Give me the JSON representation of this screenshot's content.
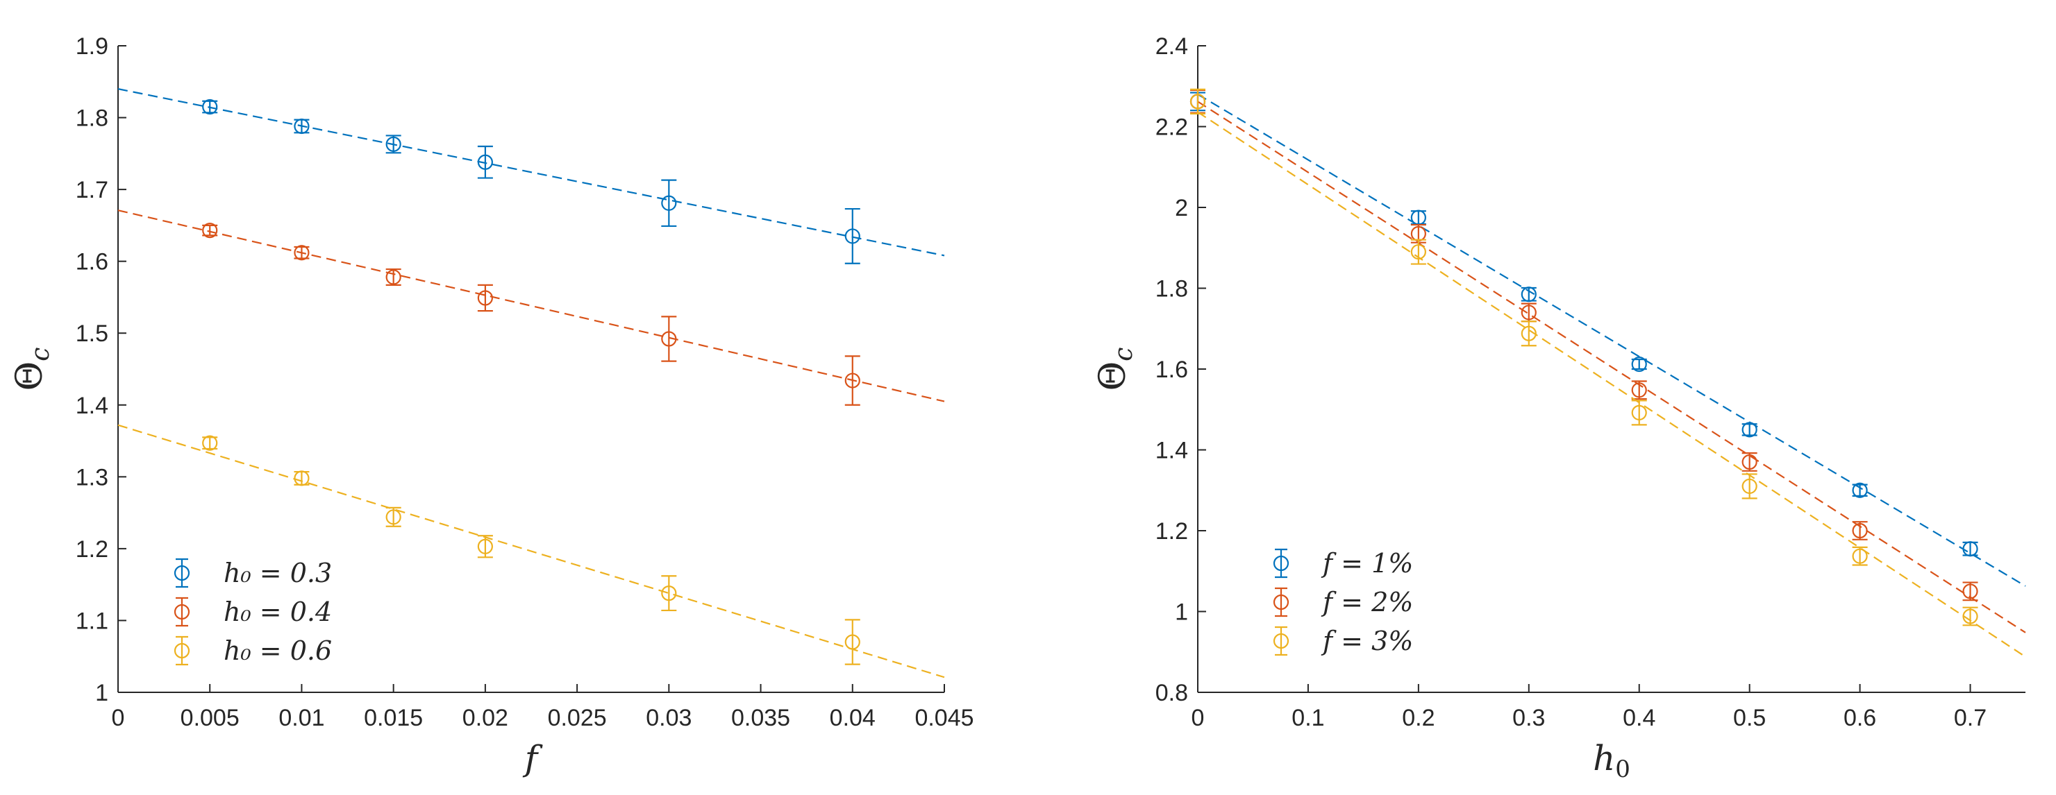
{
  "chart_data": [
    {
      "type": "scatter",
      "title": "",
      "xlabel": "f",
      "ylabel": "Θ_c",
      "xlim": [
        0,
        0.045
      ],
      "ylim": [
        1,
        1.9
      ],
      "xticks": [
        "0",
        "0.005",
        "0.01",
        "0.015",
        "0.02",
        "0.025",
        "0.03",
        "0.035",
        "0.04",
        "0.045"
      ],
      "yticks": [
        "1",
        "1.1",
        "1.2",
        "1.3",
        "1.4",
        "1.5",
        "1.6",
        "1.7",
        "1.8",
        "1.9"
      ],
      "legend_position": "bottom-left",
      "series": [
        {
          "name": "h_0 = 0.3",
          "legend_label": "h₀ = 0.3",
          "color": "#0072BD",
          "x": [
            0.005,
            0.01,
            0.015,
            0.02,
            0.03,
            0.04
          ],
          "y": [
            1.815,
            1.788,
            1.763,
            1.738,
            1.681,
            1.635
          ],
          "err": [
            0.008,
            0.009,
            0.012,
            0.022,
            0.032,
            0.038
          ],
          "fit": [
            [
              0,
              1.84
            ],
            [
              0.045,
              1.608
            ]
          ]
        },
        {
          "name": "h_0 = 0.4",
          "legend_label": "h₀ = 0.4",
          "color": "#D95319",
          "x": [
            0.005,
            0.01,
            0.015,
            0.02,
            0.03,
            0.04
          ],
          "y": [
            1.643,
            1.612,
            1.578,
            1.549,
            1.492,
            1.434
          ],
          "err": [
            0.007,
            0.008,
            0.011,
            0.018,
            0.031,
            0.034
          ],
          "fit": [
            [
              0,
              1.671
            ],
            [
              0.045,
              1.405
            ]
          ]
        },
        {
          "name": "h_0 = 0.6",
          "legend_label": "h₀ = 0.6",
          "color": "#EDB120",
          "x": [
            0.005,
            0.01,
            0.015,
            0.02,
            0.03,
            0.04
          ],
          "y": [
            1.347,
            1.298,
            1.244,
            1.203,
            1.138,
            1.07
          ],
          "err": [
            0.008,
            0.009,
            0.013,
            0.015,
            0.024,
            0.031
          ],
          "fit": [
            [
              0,
              1.372
            ],
            [
              0.045,
              1.021
            ]
          ]
        }
      ]
    },
    {
      "type": "scatter",
      "title": "",
      "xlabel": "h_0",
      "ylabel": "Θ_c",
      "xlim": [
        0,
        0.75
      ],
      "ylim": [
        0.8,
        2.4
      ],
      "xticks": [
        "0",
        "0.1",
        "0.2",
        "0.3",
        "0.4",
        "0.5",
        "0.6",
        "0.7"
      ],
      "yticks": [
        "0.8",
        "1",
        "1.2",
        "1.4",
        "1.6",
        "1.8",
        "2",
        "2.2",
        "2.4"
      ],
      "legend_position": "bottom-left",
      "series": [
        {
          "name": "f = 1%",
          "legend_label": "f = 1%",
          "color": "#0072BD",
          "x": [
            0,
            0.2,
            0.3,
            0.4,
            0.5,
            0.6,
            0.7
          ],
          "y": [
            2.262,
            1.975,
            1.785,
            1.612,
            1.45,
            1.3,
            1.155
          ],
          "err": [
            0.022,
            0.016,
            0.016,
            0.012,
            0.014,
            0.014,
            0.016
          ],
          "fit": [
            [
              0,
              2.28
            ],
            [
              0.75,
              1.063
            ]
          ]
        },
        {
          "name": "f = 2%",
          "legend_label": "f = 2%",
          "color": "#D95319",
          "x": [
            0,
            0.2,
            0.3,
            0.4,
            0.5,
            0.6,
            0.7
          ],
          "y": [
            2.262,
            1.935,
            1.74,
            1.548,
            1.37,
            1.2,
            1.05
          ],
          "err": [
            0.028,
            0.022,
            0.022,
            0.022,
            0.022,
            0.022,
            0.022
          ],
          "fit": [
            [
              0,
              2.262
            ],
            [
              0.75,
              0.948
            ]
          ]
        },
        {
          "name": "f = 3%",
          "legend_label": "f = 3%",
          "color": "#EDB120",
          "x": [
            0,
            0.2,
            0.3,
            0.4,
            0.5,
            0.6,
            0.7
          ],
          "y": [
            2.262,
            1.89,
            1.688,
            1.492,
            1.31,
            1.137,
            0.988
          ],
          "err": [
            0.03,
            0.03,
            0.03,
            0.03,
            0.03,
            0.022,
            0.022
          ],
          "fit": [
            [
              0,
              2.236
            ],
            [
              0.75,
              0.888
            ]
          ]
        }
      ]
    }
  ]
}
